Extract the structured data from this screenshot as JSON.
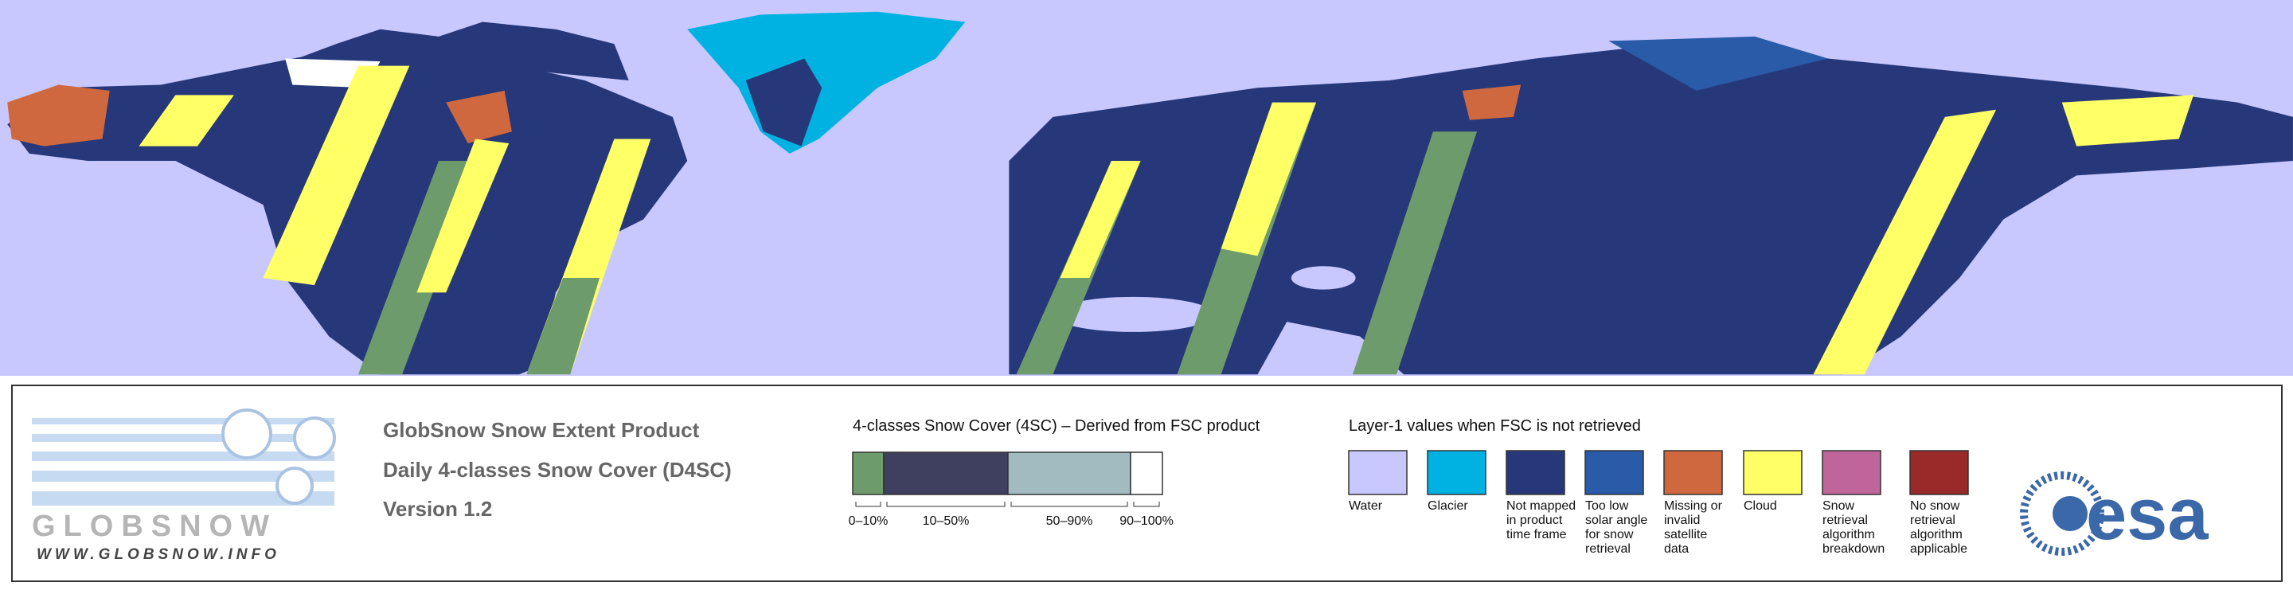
{
  "logo": {
    "name": "GLOBSNOW",
    "url": "WWW.GLOBSNOW.INFO"
  },
  "title": {
    "lines": [
      "GlobSnow Snow Extent Product",
      "Daily 4-classes Snow Cover (D4SC)",
      "Version 1.2"
    ]
  },
  "snow_cover_legend": {
    "heading": "4-classes Snow Cover (4SC) – Derived from FSC product",
    "classes": [
      {
        "label": "0–10%",
        "color": "#6e9b6b"
      },
      {
        "label": "10–50%",
        "color": "#3f3f5f"
      },
      {
        "label": "50–90%",
        "color": "#a1bbc0"
      },
      {
        "label": "90–100%",
        "color": "#ffffff"
      }
    ]
  },
  "layer1_legend": {
    "heading": "Layer-1 values when FSC is not retrieved",
    "items": [
      {
        "label": "Water",
        "color": "#c8c8ff"
      },
      {
        "label": "Glacier",
        "color": "#00b2e2"
      },
      {
        "label": "Not mapped in product time frame",
        "color": "#27387a"
      },
      {
        "label": "Too low solar angle for snow retrieval",
        "color": "#2a5ba8"
      },
      {
        "label": "Missing or invalid satellite data",
        "color": "#d0683f"
      },
      {
        "label": "Cloud",
        "color": "#ffff66"
      },
      {
        "label": "Snow retrieval algorithm breakdown",
        "color": "#c0649c"
      },
      {
        "label": "No snow retrieval algorithm applicable",
        "color": "#9a2a2a"
      }
    ]
  },
  "partner_logo": "esa"
}
